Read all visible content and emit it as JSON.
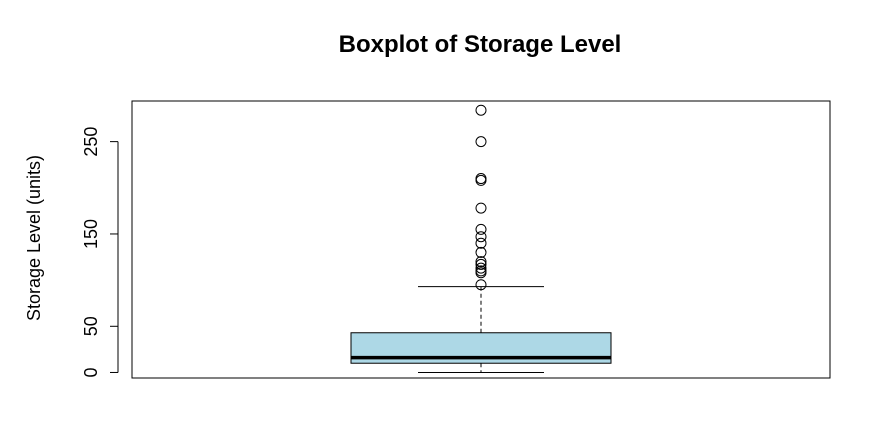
{
  "chart_data": {
    "type": "boxplot",
    "title": "Boxplot of Storage Level",
    "xlabel": "",
    "ylabel": "Storage Level (units)",
    "ylim": [
      -6,
      294
    ],
    "yticks": [
      0,
      50,
      150,
      250
    ],
    "grid": false,
    "box_fill": "#add8e6",
    "stats": {
      "whisker_low": 0,
      "q1": 10,
      "median": 16,
      "q3": 43,
      "whisker_high": 93
    },
    "outliers": [
      95,
      108,
      110,
      113,
      117,
      120,
      130,
      140,
      147,
      155,
      178,
      208,
      210,
      250,
      284
    ]
  }
}
